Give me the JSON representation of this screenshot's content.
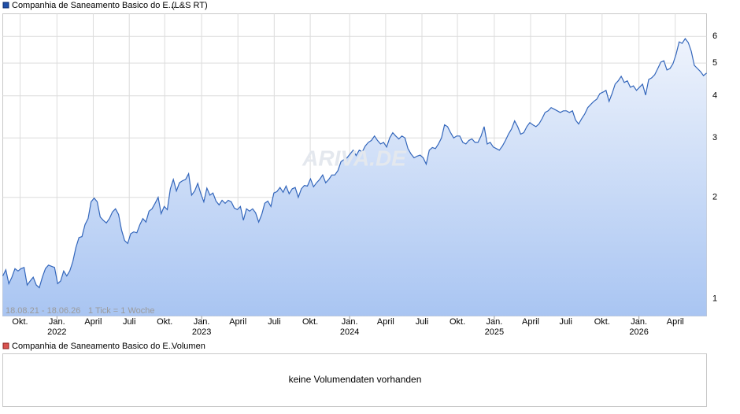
{
  "chart_data": {
    "type": "line",
    "title": "Companhia de Saneamento Basico do E...",
    "source": "(L&S RT)",
    "color": "#3366bb",
    "range_label": "18.08.21 - 18.06.26",
    "interval_label": "1 Tick = 1 Woche",
    "watermark": "ARIVA.DE",
    "log_scale": true,
    "grid": true,
    "ylim": [
      0.89,
      7.0
    ],
    "yticks": [
      1,
      2,
      3,
      4,
      5,
      6
    ],
    "xlim": [
      0,
      252
    ],
    "xticks": [
      {
        "value": 6.2,
        "label": "Okt."
      },
      {
        "value": 19.4,
        "label": "Jan."
      },
      {
        "value": 32.4,
        "label": "April"
      },
      {
        "value": 45.3,
        "label": "Juli"
      },
      {
        "value": 58.0,
        "label": "Okt."
      },
      {
        "value": 71.2,
        "label": "Jan."
      },
      {
        "value": 84.2,
        "label": "April"
      },
      {
        "value": 97.2,
        "label": "Juli"
      },
      {
        "value": 110.1,
        "label": "Okt."
      },
      {
        "value": 124.2,
        "label": "Jan."
      },
      {
        "value": 137.1,
        "label": "April"
      },
      {
        "value": 150.1,
        "label": "Juli"
      },
      {
        "value": 162.8,
        "label": "Okt."
      },
      {
        "value": 176.0,
        "label": "Jan."
      },
      {
        "value": 189.0,
        "label": "April"
      },
      {
        "value": 201.6,
        "label": "Juli"
      },
      {
        "value": 214.6,
        "label": "Okt."
      },
      {
        "value": 227.8,
        "label": "Jan."
      },
      {
        "value": 240.8,
        "label": "April"
      }
    ],
    "year_ticks": [
      {
        "value": 19.4,
        "label": "2022"
      },
      {
        "value": 71.2,
        "label": "2023"
      },
      {
        "value": 124.2,
        "label": "2024"
      },
      {
        "value": 176.0,
        "label": "2025"
      },
      {
        "value": 227.8,
        "label": "2026"
      }
    ],
    "values": [
      1.17,
      1.22,
      1.11,
      1.16,
      1.23,
      1.21,
      1.23,
      1.24,
      1.1,
      1.13,
      1.16,
      1.1,
      1.08,
      1.16,
      1.23,
      1.26,
      1.25,
      1.24,
      1.11,
      1.13,
      1.21,
      1.17,
      1.21,
      1.29,
      1.42,
      1.52,
      1.53,
      1.66,
      1.73,
      1.94,
      1.99,
      1.94,
      1.75,
      1.71,
      1.68,
      1.73,
      1.81,
      1.85,
      1.78,
      1.6,
      1.49,
      1.46,
      1.56,
      1.58,
      1.57,
      1.66,
      1.73,
      1.69,
      1.82,
      1.85,
      1.92,
      2.0,
      1.79,
      1.88,
      1.84,
      2.12,
      2.26,
      2.09,
      2.21,
      2.24,
      2.26,
      2.35,
      2.03,
      2.09,
      2.2,
      2.05,
      1.94,
      2.13,
      2.03,
      2.06,
      1.95,
      1.9,
      1.96,
      1.92,
      1.96,
      1.94,
      1.86,
      1.84,
      1.88,
      1.71,
      1.85,
      1.82,
      1.85,
      1.8,
      1.69,
      1.78,
      1.92,
      1.95,
      1.88,
      2.06,
      2.08,
      2.14,
      2.07,
      2.16,
      2.05,
      2.12,
      2.14,
      2.0,
      2.12,
      2.17,
      2.16,
      2.27,
      2.15,
      2.21,
      2.26,
      2.33,
      2.21,
      2.26,
      2.33,
      2.33,
      2.4,
      2.55,
      2.59,
      2.62,
      2.69,
      2.76,
      2.66,
      2.76,
      2.73,
      2.84,
      2.91,
      2.95,
      3.04,
      2.95,
      2.88,
      2.91,
      2.82,
      3.0,
      3.11,
      3.04,
      2.98,
      3.04,
      3.0,
      2.79,
      2.69,
      2.62,
      2.65,
      2.67,
      2.62,
      2.51,
      2.76,
      2.81,
      2.79,
      2.88,
      3.0,
      3.28,
      3.24,
      3.11,
      3.0,
      3.04,
      3.04,
      2.91,
      2.88,
      2.95,
      2.98,
      2.91,
      2.91,
      3.04,
      3.24,
      2.88,
      2.91,
      2.82,
      2.79,
      2.76,
      2.84,
      2.95,
      3.08,
      3.19,
      3.37,
      3.24,
      3.08,
      3.11,
      3.24,
      3.33,
      3.28,
      3.24,
      3.3,
      3.42,
      3.57,
      3.61,
      3.69,
      3.65,
      3.61,
      3.57,
      3.61,
      3.61,
      3.57,
      3.61,
      3.39,
      3.3,
      3.42,
      3.53,
      3.69,
      3.77,
      3.85,
      3.91,
      4.06,
      4.1,
      4.15,
      3.85,
      4.06,
      4.33,
      4.43,
      4.57,
      4.38,
      4.43,
      4.24,
      4.28,
      4.15,
      4.24,
      4.33,
      4.02,
      4.47,
      4.52,
      4.62,
      4.82,
      5.03,
      5.08,
      4.77,
      4.82,
      4.98,
      5.31,
      5.78,
      5.72,
      5.91,
      5.75,
      5.42,
      4.92,
      4.82,
      4.72,
      4.59,
      4.67
    ]
  },
  "volume_panel": {
    "title": "Companhia de Saneamento Basico do E...",
    "label": "Volumen",
    "message": "keine Volumendaten vorhanden"
  }
}
